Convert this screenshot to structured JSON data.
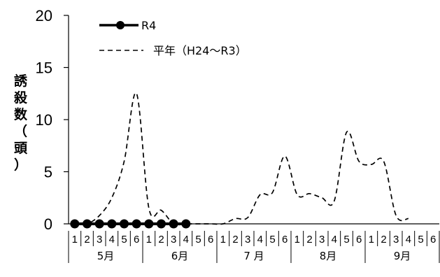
{
  "chart_data": {
    "type": "line",
    "ylabel": "誘殺数（頭）",
    "ylim": [
      0,
      20
    ],
    "yticks": [
      "0",
      "5",
      "10",
      "15",
      "20"
    ],
    "months": [
      "5月",
      "6月",
      "7 月",
      "8月",
      "9月"
    ],
    "x_labels": [
      "1",
      "2",
      "3",
      "4",
      "5",
      "6",
      "1",
      "2",
      "3",
      "4",
      "5",
      "6",
      "1",
      "2",
      "3",
      "4",
      "5",
      "6",
      "1",
      "2",
      "3",
      "4",
      "5",
      "6",
      "1",
      "2",
      "3",
      "4",
      "5",
      "6"
    ],
    "legend_position": "top-left",
    "series": [
      {
        "name": "R4",
        "style": "solid-marker",
        "color": "#000000",
        "values": [
          0,
          0,
          0,
          0,
          0,
          0,
          0,
          0,
          0,
          0,
          null,
          null,
          null,
          null,
          null,
          null,
          null,
          null,
          null,
          null,
          null,
          null,
          null,
          null,
          null,
          null,
          null,
          null,
          null,
          null
        ]
      },
      {
        "name": "平年（H24～R3）",
        "style": "dashed",
        "color": "#000000",
        "values": [
          0,
          0,
          0.8,
          2.5,
          6,
          12.5,
          1.5,
          1.3,
          0,
          0,
          0,
          0,
          0,
          0.5,
          0.6,
          2.8,
          3,
          6.5,
          2.8,
          2.9,
          2.5,
          2.2,
          8.8,
          6,
          5.7,
          6,
          0.8,
          0.5,
          null,
          null
        ]
      }
    ]
  },
  "legend": {
    "r4": "R4",
    "normal": "平年（H24～R3）"
  }
}
